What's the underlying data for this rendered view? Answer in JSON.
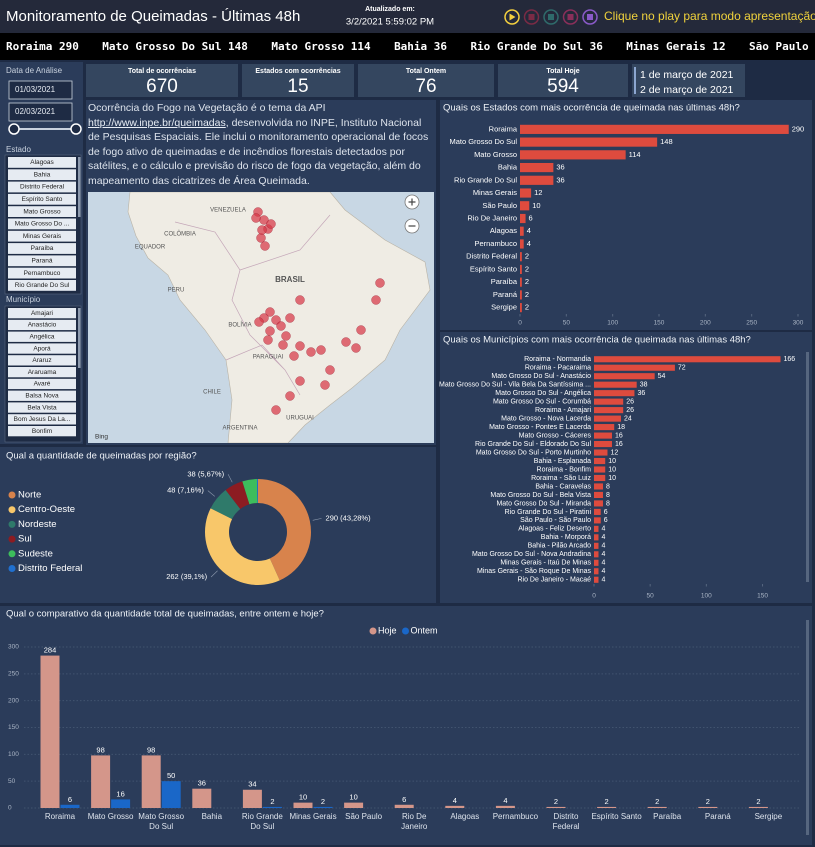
{
  "header": {
    "title": "Monitoramento de Queimadas - Últimas 48h",
    "updated_label": "Atualizado em:",
    "updated_at": "3/2/2021 5:59:02 PM",
    "play_hint": "Clique no play para modo apresentação"
  },
  "ticker": [
    {
      "name": "Roraima",
      "value": 290
    },
    {
      "name": "Mato Grosso Do Sul",
      "value": 148
    },
    {
      "name": "Mato Grosso",
      "value": 114
    },
    {
      "name": "Bahia",
      "value": 36
    },
    {
      "name": "Rio Grande Do Sul",
      "value": 36
    },
    {
      "name": "Minas Gerais",
      "value": 12
    },
    {
      "name": "São Paulo"
    }
  ],
  "filters": {
    "date_label": "Data de Análise",
    "date_start": "01/03/2021",
    "date_end": "02/03/2021",
    "state_label": "Estado",
    "states": [
      "Alagoas",
      "Bahia",
      "Distrito Federal",
      "Espírito Santo",
      "Mato Grosso",
      "Mato Grosso Do ...",
      "Minas Gerais",
      "Paraíba",
      "Paraná",
      "Pernambuco",
      "Rio Grande Do Sul"
    ],
    "municipality_label": "Município",
    "municipalities": [
      "Amajari",
      "Anastácio",
      "Angélica",
      "Aporá",
      "Araruz",
      "Araruama",
      "Avaré",
      "Balsa Nova",
      "Bela Vista",
      "Bom Jesus Da La...",
      "Bonfim"
    ]
  },
  "kpis": [
    {
      "label": "Total de ocorrências",
      "value": 670
    },
    {
      "label": "Estados com ocorrências",
      "value": 15
    },
    {
      "label": "Total Ontem",
      "value": 76
    },
    {
      "label": "Total Hoje",
      "value": 594
    }
  ],
  "dates": [
    "1 de março de 2021",
    "2 de março de 2021"
  ],
  "description": {
    "before": "Ocorrência do Fogo na Vegetação é o tema da API ",
    "link": "http://www.inpe.br/queimadas",
    "after": ", desenvolvida no INPE, Instituto Nacional de Pesquisas Espaciais. Ele inclui o monitoramento operacional de focos de fogo ativo de queimadas e de incêndios florestais detectados por satélites, e o cálculo e previsão do risco de fogo da vegetação, além do mapeamento das cicatrizes de Área Queimada."
  },
  "map": {
    "labels": [
      "VENEZUELA",
      "COLÔMBIA",
      "EQUADOR",
      "PERU",
      "BRASIL",
      "BOLÍVIA",
      "PARAGUAI",
      "CHILE",
      "ARGENTINA",
      "URUGUAI"
    ],
    "attribution": "Bing"
  },
  "chart_data": [
    {
      "type": "hbar",
      "title": "Quais os Estados com mais ocorrência de queimada nas últimas 48h?",
      "categories": [
        "Roraima",
        "Mato Grosso Do Sul",
        "Mato Grosso",
        "Bahia",
        "Rio Grande Do Sul",
        "Minas Gerais",
        "São Paulo",
        "Rio De Janeiro",
        "Alagoas",
        "Pernambuco",
        "Distrito Federal",
        "Espírito Santo",
        "Paraíba",
        "Paraná",
        "Sergipe"
      ],
      "values": [
        290,
        148,
        114,
        36,
        36,
        12,
        10,
        6,
        4,
        4,
        2,
        2,
        2,
        2,
        2
      ],
      "color": "#de4b3e",
      "xlim": [
        0,
        300
      ],
      "xticks": [
        0,
        50,
        100,
        150,
        200,
        250,
        300
      ]
    },
    {
      "type": "hbar",
      "title": "Quais os Municípios com mais ocorrência de queimada nas últimas 48h?",
      "categories": [
        "Roraima - Normandia",
        "Roraima - Pacaraima",
        "Mato Grosso Do Sul - Anastácio",
        "Mato Grosso Do Sul - Vila Bela Da Santíssima ...",
        "Mato Grosso Do Sul - Angélica",
        "Mato Grosso Do Sul - Corumbá",
        "Roraima - Amajari",
        "Mato Grosso - Nova Lacerda",
        "Mato Grosso - Pontes E Lacerda",
        "Mato Grosso - Cáceres",
        "Rio Grande Do Sul - Eldorado Do Sul",
        "Mato Grosso Do Sul - Porto Murtinho",
        "Bahia - Esplanada",
        "Roraima - Bonfim",
        "Roraima - São Luiz",
        "Bahia - Caravelas",
        "Mato Grosso Do Sul - Bela Vista",
        "Mato Grosso Do Sul - Miranda",
        "Rio Grande Do Sul - Piratini",
        "São Paulo - São Paulo",
        "Alagoas - Feliz Deserto",
        "Bahia - Morporá",
        "Bahia - Pilão Arcado",
        "Mato Grosso Do Sul - Nova Andradina",
        "Minas Gerais - Itaú De Minas",
        "Minas Gerais - São Roque De Minas",
        "Rio De Janeiro - Macaé"
      ],
      "values": [
        166,
        72,
        54,
        38,
        36,
        26,
        26,
        24,
        18,
        16,
        16,
        12,
        10,
        10,
        10,
        8,
        8,
        8,
        6,
        6,
        4,
        4,
        4,
        4,
        4,
        4,
        4
      ],
      "color": "#de4b3e",
      "xlim": [
        0,
        170
      ],
      "xticks": [
        0,
        50,
        100,
        150
      ]
    },
    {
      "type": "donut",
      "title": "Qual a quantidade de queimadas por região?",
      "categories": [
        "Norte",
        "Centro-Oeste",
        "Nordeste",
        "Sul",
        "Sudeste",
        "Distrito Federal"
      ],
      "values": [
        290,
        262,
        48,
        38,
        30,
        2
      ],
      "value_labels": [
        "290 (43,28%)",
        "262 (39,1%)",
        "48 (7,16%)",
        "38 (5,67%)",
        null,
        null
      ],
      "colors": [
        "#d8834c",
        "#f8c76a",
        "#2f7a6a",
        "#8c1c22",
        "#3dbd5c",
        "#2070d0"
      ],
      "legend": "left"
    },
    {
      "type": "grouped_bar",
      "title": "Qual o comparativo da quantidade total de queimadas, entre ontem e hoje?",
      "categories": [
        "Roraima",
        "Mato Grosso",
        "Mato Grosso Do Sul",
        "Bahia",
        "Rio Grande Do Sul",
        "Minas Gerais",
        "São Paulo",
        "Rio De Janeiro",
        "Alagoas",
        "Pernambuco",
        "Distrito Federal",
        "Espírito Santo",
        "Paraíba",
        "Paraná",
        "Sergipe"
      ],
      "series": [
        {
          "name": "Hoje",
          "color": "#d4968a",
          "values": [
            284,
            98,
            98,
            36,
            34,
            10,
            10,
            6,
            4,
            4,
            2,
            2,
            2,
            2,
            2
          ]
        },
        {
          "name": "Ontem",
          "color": "#1a67c8",
          "values": [
            6,
            16,
            50,
            null,
            2,
            2,
            null,
            null,
            null,
            null,
            null,
            null,
            null,
            null,
            null
          ]
        }
      ],
      "ylim": [
        0,
        300
      ],
      "yticks": [
        0,
        50,
        100,
        150,
        200,
        250,
        300
      ],
      "grid": true,
      "legend": "top"
    }
  ]
}
